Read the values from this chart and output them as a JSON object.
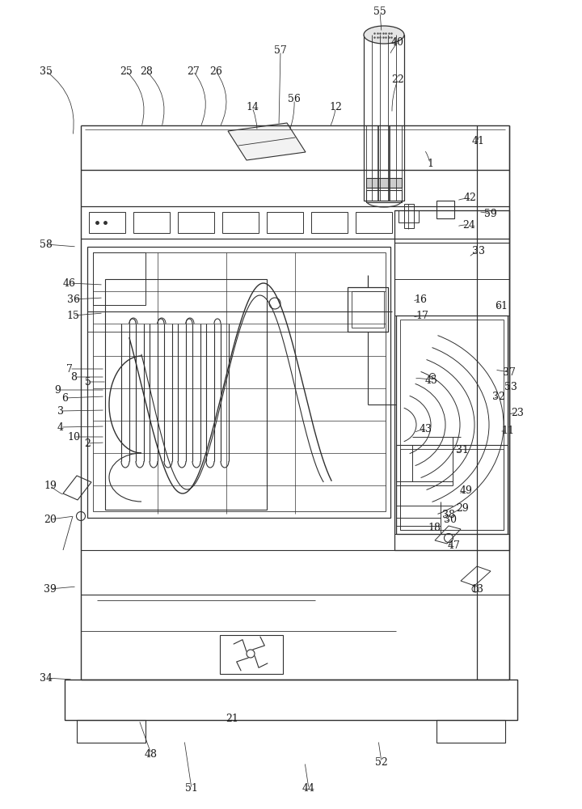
{
  "bg_color": "#ffffff",
  "line_color": "#303030",
  "label_color": "#1a1a1a",
  "figsize": [
    7.2,
    10.0
  ],
  "dpi": 100
}
